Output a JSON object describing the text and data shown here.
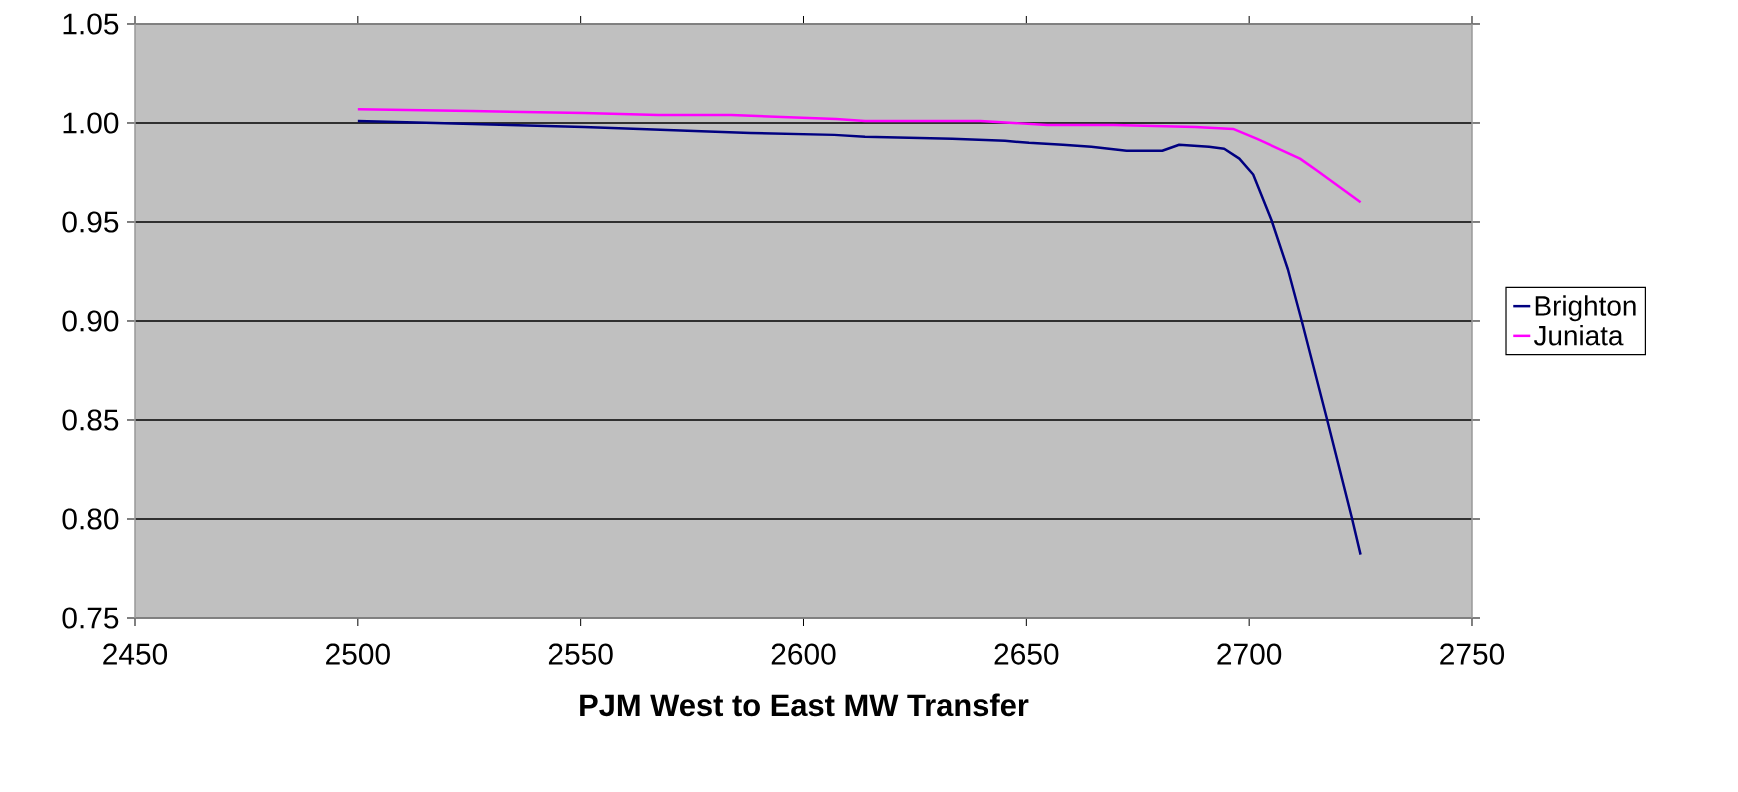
{
  "chart_data": {
    "type": "line",
    "xlabel": "PJM West to East MW Transfer",
    "xlim": [
      2450,
      2750
    ],
    "xticks": [
      2450,
      2500,
      2550,
      2600,
      2650,
      2700,
      2750
    ],
    "ylim": [
      0.75,
      1.05
    ],
    "yticks": [
      {
        "value": 0.75,
        "label": "0.75"
      },
      {
        "value": 0.8,
        "label": "0.80"
      },
      {
        "value": 0.85,
        "label": "0.85"
      },
      {
        "value": 0.9,
        "label": "0.90"
      },
      {
        "value": 0.95,
        "label": "0.95"
      },
      {
        "value": 1.0,
        "label": "1.00"
      },
      {
        "value": 1.05,
        "label": "1.05"
      }
    ],
    "grid": "y",
    "legend": "right",
    "marker": "none",
    "line_style": "solid",
    "series": [
      {
        "name": "Brighton",
        "color": "#000080",
        "x": [
          2500,
          2517.4,
          2533.9,
          2550.7,
          2563.3,
          2575.5,
          2588.1,
          2606.9,
          2613.8,
          2633.4,
          2645.2,
          2650.6,
          2658.2,
          2664.6,
          2672.5,
          2680.5,
          2684.3,
          2691,
          2694.4,
          2697.8,
          2700.9,
          2705,
          2708.7,
          2711.8,
          2717.4,
          2723,
          2725
        ],
        "values": [
          1.001,
          1.0,
          0.999,
          0.998,
          0.997,
          0.996,
          0.995,
          0.994,
          0.993,
          0.992,
          0.991,
          0.99,
          0.989,
          0.988,
          0.986,
          0.986,
          0.989,
          0.988,
          0.987,
          0.982,
          0.974,
          0.951,
          0.926,
          0.9,
          0.851,
          0.801,
          0.782
        ]
      },
      {
        "name": "Juniata",
        "color": "#ff00ff",
        "x": [
          2500,
          2525.5,
          2550.7,
          2567.4,
          2583.8,
          2607.3,
          2613.8,
          2639.7,
          2654.7,
          2669.6,
          2687.9,
          2696.4,
          2701.8,
          2711.4,
          2715.2,
          2725
        ],
        "values": [
          1.007,
          1.006,
          1.005,
          1.004,
          1.004,
          1.002,
          1.001,
          1.001,
          0.999,
          0.999,
          0.998,
          0.997,
          0.992,
          0.982,
          0.976,
          0.96
        ]
      }
    ]
  }
}
